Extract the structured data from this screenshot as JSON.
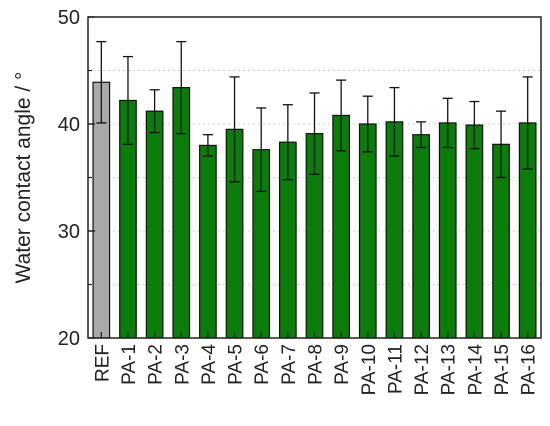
{
  "chart_data": {
    "type": "bar",
    "title": "",
    "xlabel": "",
    "ylabel": "Water contact angle / °",
    "ylim": [
      20,
      50
    ],
    "yticks": [
      20,
      30,
      40,
      50
    ],
    "grid": "horizontal-dashed",
    "legend": "none",
    "categories": [
      "REF",
      "PA-1",
      "PA-2",
      "PA-3",
      "PA-4",
      "PA-5",
      "PA-6",
      "PA-7",
      "PA-8",
      "PA-9",
      "PA-10",
      "PA-11",
      "PA-12",
      "PA-13",
      "PA-14",
      "PA-15",
      "PA-16"
    ],
    "values": [
      43.9,
      42.2,
      41.2,
      43.4,
      38.0,
      39.5,
      37.6,
      38.3,
      39.1,
      40.8,
      40.0,
      40.2,
      39.0,
      40.1,
      39.9,
      38.1,
      40.1
    ],
    "errors": [
      3.8,
      4.1,
      2.0,
      4.3,
      1.0,
      4.9,
      3.9,
      3.5,
      3.8,
      3.3,
      2.6,
      3.2,
      1.2,
      2.3,
      2.2,
      3.1,
      4.3
    ],
    "colors": {
      "REF": "#a9a9a9",
      "default": "#0a7d0a",
      "edge": "#111111"
    }
  }
}
